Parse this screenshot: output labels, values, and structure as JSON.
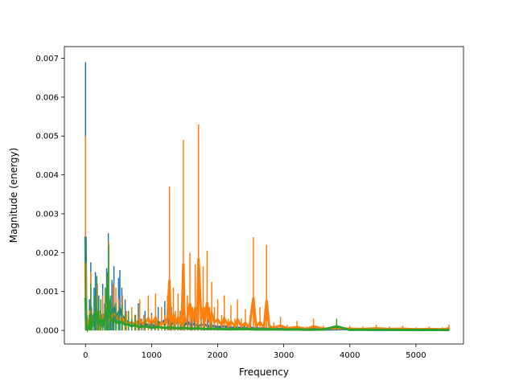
{
  "chart_data": {
    "type": "line",
    "title": "",
    "xlabel": "Frequency",
    "ylabel": "Magnitude (energy)",
    "xlim": [
      -320,
      5720
    ],
    "ylim": [
      -0.00035,
      0.0073
    ],
    "xticks": [
      0,
      1000,
      2000,
      3000,
      4000,
      5000
    ],
    "xtick_labels": [
      "0",
      "1000",
      "2000",
      "3000",
      "4000",
      "5000"
    ],
    "yticks": [
      0,
      0.001,
      0.002,
      0.003,
      0.004,
      0.005,
      0.006,
      0.007
    ],
    "ytick_labels": [
      "0.000",
      "0.001",
      "0.002",
      "0.003",
      "0.004",
      "0.005",
      "0.006",
      "0.007"
    ],
    "grid": false,
    "legend": "none",
    "series": [
      {
        "color": "#1f77b4",
        "x": [
          0,
          10,
          30,
          60,
          80,
          100,
          130,
          150,
          180,
          200,
          230,
          260,
          290,
          320,
          345,
          370,
          400,
          430,
          460,
          500,
          520,
          550,
          600,
          650,
          700,
          750,
          800,
          850,
          900,
          950,
          1000,
          1050,
          1100,
          1150,
          1200,
          1250,
          1280,
          1300,
          1350,
          1400,
          1450,
          1500,
          1550,
          1600,
          1650,
          1700,
          1750,
          1800,
          1850,
          1900,
          1950,
          2000,
          2100,
          2200,
          2300,
          2400,
          2500,
          2600,
          2700,
          2800,
          2900,
          3000,
          3200,
          3400,
          3600,
          3800,
          4000,
          4200,
          4400,
          4600,
          4800,
          5000,
          5200,
          5400,
          5500
        ],
        "y": [
          0.0069,
          0.0012,
          0.0002,
          0.0008,
          0.00175,
          0.0004,
          0.0011,
          0.0015,
          0.0006,
          0.0009,
          0.0003,
          0.0012,
          0.0007,
          0.0016,
          0.0025,
          0.0008,
          0.0013,
          0.00165,
          0.0007,
          0.00135,
          0.00155,
          0.0011,
          0.0008,
          0.0005,
          0.0006,
          0.0004,
          0.0007,
          0.0003,
          0.0005,
          0.00035,
          0.00045,
          0.0003,
          0.0006,
          0.0005,
          0.00075,
          0.0008,
          0.0005,
          0.0006,
          0.0004,
          0.0007,
          0.0005,
          0.0004,
          0.0006,
          0.00035,
          0.0005,
          0.0003,
          0.0004,
          0.00045,
          0.0003,
          0.00035,
          0.0003,
          0.00025,
          0.0003,
          0.0002,
          0.0002,
          0.00015,
          0.00018,
          0.00012,
          0.00015,
          0.0001,
          0.0001,
          0.00012,
          8e-05,
          0.0001,
          7e-05,
          8e-05,
          0.0001,
          6e-05,
          5e-05,
          5e-05,
          4e-05,
          4e-05,
          3e-05,
          3e-05,
          3e-05
        ]
      },
      {
        "color": "#ff7f0e",
        "x": [
          0,
          10,
          40,
          80,
          100,
          140,
          180,
          220,
          260,
          300,
          350,
          380,
          420,
          460,
          500,
          560,
          620,
          700,
          760,
          820,
          880,
          950,
          1000,
          1060,
          1100,
          1150,
          1200,
          1240,
          1270,
          1290,
          1330,
          1360,
          1400,
          1430,
          1460,
          1480,
          1500,
          1540,
          1580,
          1620,
          1660,
          1690,
          1710,
          1750,
          1780,
          1800,
          1840,
          1880,
          1910,
          1950,
          2000,
          2060,
          2100,
          2160,
          2200,
          2260,
          2300,
          2360,
          2420,
          2480,
          2540,
          2580,
          2640,
          2700,
          2740,
          2780,
          2850,
          2950,
          3050,
          3200,
          3350,
          3450,
          3600,
          3800,
          4000,
          4200,
          4400,
          4600,
          4800,
          5000,
          5200,
          5400,
          5500
        ],
        "y": [
          0.005,
          0.0008,
          0.0002,
          0.0015,
          0.0004,
          0.0009,
          0.0012,
          0.0005,
          0.0009,
          0.0011,
          0.0023,
          0.0007,
          0.0012,
          0.0011,
          0.0008,
          0.0009,
          0.0005,
          0.0006,
          0.0004,
          0.0008,
          0.0004,
          0.0009,
          0.0004,
          0.00095,
          0.0003,
          0.0006,
          0.0004,
          0.0009,
          0.0037,
          0.0005,
          0.0011,
          0.0005,
          0.00095,
          0.0005,
          0.0011,
          0.0049,
          0.0006,
          0.0009,
          0.002,
          0.0006,
          0.0017,
          0.0006,
          0.0053,
          0.0008,
          0.00165,
          0.0006,
          0.00205,
          0.0006,
          0.00125,
          0.0006,
          0.0008,
          0.0004,
          0.0009,
          0.0003,
          0.00065,
          0.0003,
          0.0008,
          0.0003,
          0.00055,
          0.0002,
          0.0024,
          0.0003,
          0.0006,
          0.0002,
          0.0022,
          0.0003,
          0.0002,
          0.00035,
          0.00015,
          0.00025,
          0.0001,
          0.0003,
          0.00012,
          0.00015,
          0.00012,
          0.0001,
          0.00015,
          0.0001,
          0.00012,
          8e-05,
          0.0001,
          8e-05,
          0.00015
        ]
      },
      {
        "color": "#2ca02c",
        "x": [
          0,
          8,
          30,
          60,
          80,
          100,
          140,
          170,
          200,
          230,
          260,
          300,
          330,
          350,
          380,
          420,
          460,
          500,
          550,
          600,
          650,
          700,
          750,
          800,
          900,
          1000,
          1100,
          1200,
          1300,
          1400,
          1500,
          1600,
          1700,
          1800,
          1900,
          2000,
          2200,
          2400,
          2600,
          2800,
          3000,
          3200,
          3400,
          3600,
          3800,
          4000,
          4200,
          4400,
          4600,
          4800,
          5000,
          5200,
          5400,
          5500
        ],
        "y": [
          0.0024,
          0.0006,
          0.0001,
          0.0004,
          0.0012,
          0.0003,
          0.0009,
          0.0014,
          0.0005,
          0.0008,
          0.0003,
          0.0011,
          0.0015,
          0.0022,
          0.0009,
          0.0006,
          0.0007,
          0.0005,
          0.00065,
          0.0004,
          0.00045,
          0.0003,
          0.0004,
          0.00025,
          0.0003,
          0.0002,
          0.00025,
          0.00018,
          0.0002,
          0.00015,
          0.00018,
          0.00012,
          0.00015,
          0.0001,
          0.00012,
          0.0001,
          8e-05,
          0.0001,
          7e-05,
          8e-05,
          6e-05,
          6e-05,
          5e-05,
          6e-05,
          0.0003,
          4e-05,
          5e-05,
          4e-05,
          4e-05,
          3e-05,
          3e-05,
          3e-05,
          3e-05,
          2e-05
        ]
      }
    ]
  }
}
